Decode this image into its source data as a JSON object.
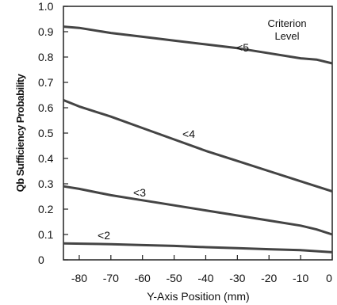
{
  "chart_data": {
    "type": "line",
    "xlabel": "Y-Axis Position (mm)",
    "ylabel": "Qb Sufficiency Probability",
    "xlim": [
      -85,
      0
    ],
    "ylim": [
      0,
      1.0
    ],
    "x_ticks": [
      "-80",
      "-70",
      "-60",
      "-50",
      "-40",
      "-30",
      "-20",
      "-10",
      "0"
    ],
    "y_ticks": [
      "0",
      "0.1",
      "0.2",
      "0.3",
      "0.4",
      "0.5",
      "0.6",
      "0.7",
      "0.8",
      "0.9",
      "1.0"
    ],
    "legend_title": [
      "Criterion",
      "Level"
    ],
    "grid": false,
    "series": [
      {
        "name": "<5",
        "x": [
          -85,
          -80,
          -70,
          -60,
          -50,
          -40,
          -30,
          -20,
          -10,
          -5,
          0
        ],
        "y": [
          0.92,
          0.915,
          0.895,
          0.88,
          0.865,
          0.85,
          0.835,
          0.815,
          0.795,
          0.79,
          0.775
        ]
      },
      {
        "name": "<4",
        "x": [
          -85,
          -80,
          -70,
          -60,
          -50,
          -40,
          -30,
          -20,
          -10,
          0
        ],
        "y": [
          0.63,
          0.605,
          0.565,
          0.52,
          0.475,
          0.43,
          0.39,
          0.35,
          0.31,
          0.27
        ]
      },
      {
        "name": "<3",
        "x": [
          -85,
          -80,
          -70,
          -60,
          -50,
          -40,
          -30,
          -20,
          -10,
          -5,
          0
        ],
        "y": [
          0.29,
          0.28,
          0.255,
          0.235,
          0.215,
          0.195,
          0.175,
          0.155,
          0.135,
          0.12,
          0.1
        ]
      },
      {
        "name": "<2",
        "x": [
          -85,
          -70,
          -60,
          -50,
          -40,
          -30,
          -20,
          -10,
          0
        ],
        "y": [
          0.065,
          0.062,
          0.058,
          0.055,
          0.05,
          0.046,
          0.042,
          0.038,
          0.03
        ]
      }
    ]
  }
}
